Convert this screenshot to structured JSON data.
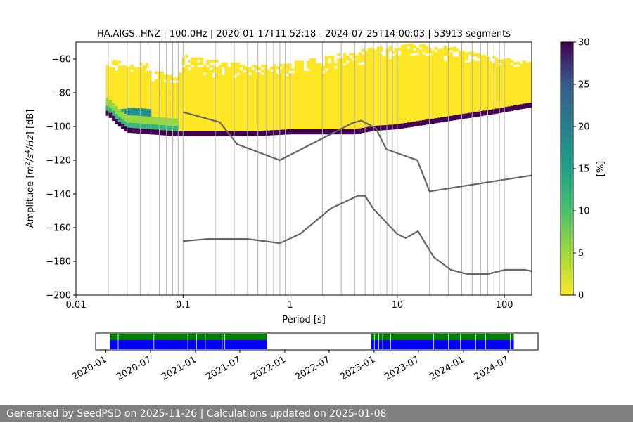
{
  "chart_data": {
    "type": "heatmap",
    "title": "HA.AIGS..HNZ | 100.0Hz | 2020-01-17T11:52:18 - 2024-07-25T14:00:03 | 53913 segments",
    "xlabel": "Period [s]",
    "ylabel": "Amplitude [m²/s⁴/Hz] [dB]",
    "x_scale": "log",
    "xlim": [
      0.01,
      180
    ],
    "ylim": [
      -200,
      -50
    ],
    "x_ticks": [
      "0.01",
      "0.1",
      "1",
      "10",
      "100"
    ],
    "y_ticks": [
      "−200",
      "−180",
      "−160",
      "−140",
      "−120",
      "−100",
      "−80",
      "−60"
    ],
    "colorbar": {
      "label": "[%]",
      "range": [
        0,
        30
      ],
      "ticks": [
        "0",
        "5",
        "10",
        "15",
        "20",
        "25",
        "30"
      ],
      "colormap": "viridis-reversed"
    },
    "grid_periods": [
      0.02,
      0.03,
      0.04,
      0.05,
      0.06,
      0.07,
      0.08,
      0.09,
      0.1,
      0.2,
      0.3,
      0.4,
      0.5,
      0.6,
      0.7,
      0.8,
      0.9,
      1,
      2,
      3,
      4,
      5,
      6,
      7,
      8,
      9,
      10,
      20,
      30,
      40,
      50,
      60,
      70,
      80,
      90,
      100
    ],
    "mode_curve": [
      {
        "x": 0.02,
        "y": -91
      },
      {
        "x": 0.025,
        "y": -97
      },
      {
        "x": 0.03,
        "y": -101
      },
      {
        "x": 0.05,
        "y": -102
      },
      {
        "x": 0.08,
        "y": -103
      },
      {
        "x": 0.12,
        "y": -103
      },
      {
        "x": 0.2,
        "y": -103
      },
      {
        "x": 0.5,
        "y": -103
      },
      {
        "x": 1,
        "y": -102
      },
      {
        "x": 2,
        "y": -102
      },
      {
        "x": 4,
        "y": -102
      },
      {
        "x": 6,
        "y": -100
      },
      {
        "x": 10,
        "y": -99
      },
      {
        "x": 20,
        "y": -96
      },
      {
        "x": 40,
        "y": -93
      },
      {
        "x": 80,
        "y": -90
      },
      {
        "x": 180,
        "y": -86
      }
    ],
    "high_noise_model": [
      {
        "x": 0.1,
        "y": -91.5
      },
      {
        "x": 0.22,
        "y": -97.4
      },
      {
        "x": 0.32,
        "y": -110.5
      },
      {
        "x": 0.8,
        "y": -120
      },
      {
        "x": 3.8,
        "y": -98
      },
      {
        "x": 4.6,
        "y": -96.5
      },
      {
        "x": 6.3,
        "y": -101
      },
      {
        "x": 7.9,
        "y": -113.5
      },
      {
        "x": 15.4,
        "y": -120
      },
      {
        "x": 20,
        "y": -138.5
      },
      {
        "x": 180,
        "y": -129
      }
    ],
    "low_noise_model": [
      {
        "x": 0.1,
        "y": -168
      },
      {
        "x": 0.17,
        "y": -166.7
      },
      {
        "x": 0.4,
        "y": -166.7
      },
      {
        "x": 0.8,
        "y": -169.2
      },
      {
        "x": 1.24,
        "y": -163.7
      },
      {
        "x": 2.4,
        "y": -148.6
      },
      {
        "x": 4.3,
        "y": -141.1
      },
      {
        "x": 5,
        "y": -141.1
      },
      {
        "x": 6,
        "y": -149
      },
      {
        "x": 10,
        "y": -163.8
      },
      {
        "x": 12,
        "y": -166.2
      },
      {
        "x": 15.6,
        "y": -162.1
      },
      {
        "x": 21.9,
        "y": -177.5
      },
      {
        "x": 31.6,
        "y": -185
      },
      {
        "x": 45,
        "y": -187.5
      },
      {
        "x": 70,
        "y": -187.5
      },
      {
        "x": 101,
        "y": -185
      },
      {
        "x": 154,
        "y": -185
      },
      {
        "x": 180,
        "y": -185.8
      }
    ],
    "availability": {
      "date_ticks": [
        "2020-01",
        "2020-07",
        "2021-01",
        "2021-07",
        "2022-01",
        "2022-07",
        "2023-01",
        "2023-07",
        "2024-01",
        "2024-07"
      ],
      "data_periods": [
        {
          "start": "2020-01-17",
          "end": "2021-10-20"
        },
        {
          "start": "2022-12-20",
          "end": "2024-07-25"
        }
      ],
      "gaps": [
        "2020-02-20",
        "2020-07-15",
        "2020-12-01",
        "2021-01-05",
        "2021-02-10",
        "2021-04-20",
        "2021-05-01",
        "2023-01-02",
        "2023-01-20",
        "2023-02-05",
        "2023-03-10",
        "2023-09-01",
        "2023-11-01",
        "2023-12-20",
        "2024-02-20",
        "2024-04-01",
        "2024-07-10"
      ],
      "colors": {
        "coverage": "#0000ff",
        "processed": "#008000",
        "gap": "#ffffff"
      }
    }
  },
  "footer": {
    "text": "Generated by SeedPSD on 2025-11-26 | Calculations updated on 2025-01-08"
  }
}
